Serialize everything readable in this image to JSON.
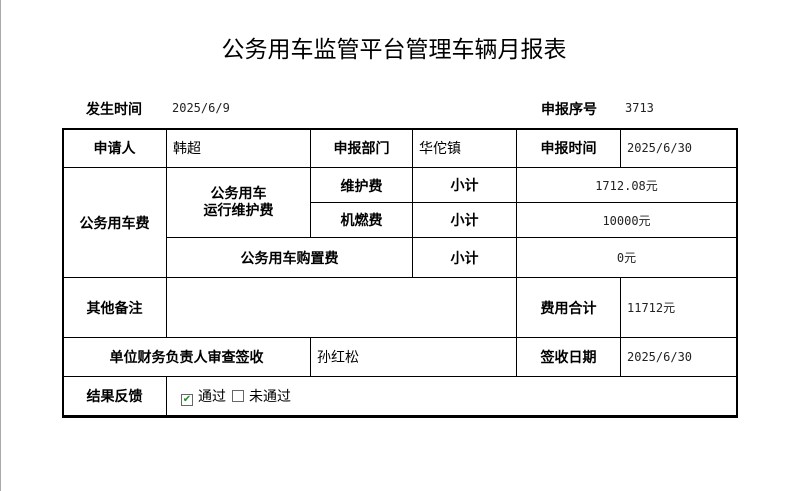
{
  "title": "公务用车监管平台管理车辆月报表",
  "header": {
    "occur_label": "发生时间",
    "occur_value": "2025/6/9",
    "serial_label": "申报序号",
    "serial_value": "3713"
  },
  "table": {
    "applicant_label": "申请人",
    "applicant": "韩超",
    "dept_label": "申报部门",
    "dept": "华佗镇",
    "report_time_label": "申报时间",
    "report_time": "2025/6/30",
    "vehicle_fee_label": "公务用车费",
    "operation_label": "公务用车\n运行维护费",
    "maintenance_label": "维护费",
    "fuel_label": "机燃费",
    "purchase_label": "公务用车购置费",
    "subtotal_label": "小计",
    "maintenance_value": "1712.08元",
    "fuel_value": "10000元",
    "purchase_value": "0元",
    "remarks_label": "其他备注",
    "remarks": "",
    "total_label": "费用合计",
    "total": "11712元",
    "reviewer_label": "单位财务负责人审查签收",
    "reviewer": "孙红松",
    "sign_date_label": "签收日期",
    "sign_date": "2025/6/30",
    "result_label": "结果反馈",
    "options": [
      {
        "label": "通过",
        "checked": true
      },
      {
        "label": "未通过",
        "checked": false
      }
    ]
  }
}
